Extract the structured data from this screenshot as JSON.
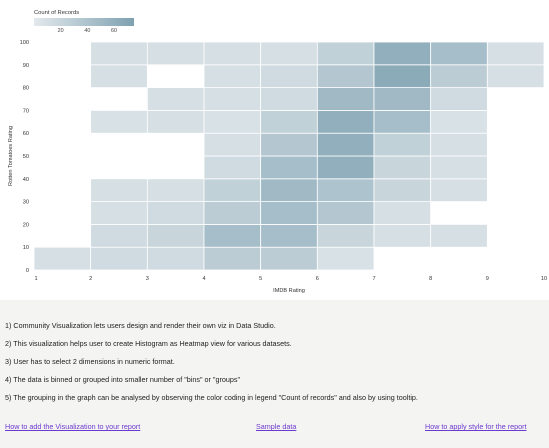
{
  "chart_data": {
    "type": "heatmap",
    "legend": {
      "title": "Count of Records",
      "ticks": [
        20,
        40,
        60
      ],
      "min": 0,
      "max": 75,
      "placement": "top-left"
    },
    "xlabel": "IMDB Rating",
    "ylabel": "Rotten Tomatoes Rating",
    "x_ticks": [
      1,
      2,
      3,
      4,
      5,
      6,
      7,
      8,
      9,
      10
    ],
    "y_ticks": [
      0,
      10,
      20,
      30,
      40,
      50,
      60,
      70,
      80,
      90,
      100
    ],
    "xlim": [
      1,
      10
    ],
    "ylim": [
      0,
      100
    ],
    "x_bin_width": 1,
    "y_bin_width": 10,
    "colors": {
      "low": "#e3e9ec",
      "high": "#7ea1b1"
    },
    "cells": [
      {
        "x": 1,
        "y": 0,
        "count": 10
      },
      {
        "x": 2,
        "y": 0,
        "count": 15
      },
      {
        "x": 3,
        "y": 0,
        "count": 15
      },
      {
        "x": 4,
        "y": 0,
        "count": 30
      },
      {
        "x": 5,
        "y": 0,
        "count": 30
      },
      {
        "x": 6,
        "y": 0,
        "count": 8
      },
      {
        "x": 2,
        "y": 10,
        "count": 15
      },
      {
        "x": 3,
        "y": 10,
        "count": 20
      },
      {
        "x": 4,
        "y": 10,
        "count": 45
      },
      {
        "x": 5,
        "y": 10,
        "count": 45
      },
      {
        "x": 6,
        "y": 10,
        "count": 20
      },
      {
        "x": 7,
        "y": 10,
        "count": 10
      },
      {
        "x": 8,
        "y": 10,
        "count": 10
      },
      {
        "x": 2,
        "y": 20,
        "count": 10
      },
      {
        "x": 3,
        "y": 20,
        "count": 15
      },
      {
        "x": 4,
        "y": 20,
        "count": 30
      },
      {
        "x": 5,
        "y": 20,
        "count": 45
      },
      {
        "x": 6,
        "y": 20,
        "count": 35
      },
      {
        "x": 7,
        "y": 20,
        "count": 10
      },
      {
        "x": 2,
        "y": 30,
        "count": 10
      },
      {
        "x": 3,
        "y": 30,
        "count": 10
      },
      {
        "x": 4,
        "y": 30,
        "count": 25
      },
      {
        "x": 5,
        "y": 30,
        "count": 50
      },
      {
        "x": 6,
        "y": 30,
        "count": 40
      },
      {
        "x": 7,
        "y": 30,
        "count": 20
      },
      {
        "x": 8,
        "y": 30,
        "count": 10
      },
      {
        "x": 4,
        "y": 40,
        "count": 15
      },
      {
        "x": 5,
        "y": 40,
        "count": 45
      },
      {
        "x": 6,
        "y": 40,
        "count": 60
      },
      {
        "x": 7,
        "y": 40,
        "count": 20
      },
      {
        "x": 8,
        "y": 40,
        "count": 10
      },
      {
        "x": 4,
        "y": 50,
        "count": 10
      },
      {
        "x": 5,
        "y": 50,
        "count": 35
      },
      {
        "x": 6,
        "y": 50,
        "count": 60
      },
      {
        "x": 7,
        "y": 50,
        "count": 25
      },
      {
        "x": 8,
        "y": 50,
        "count": 10
      },
      {
        "x": 2,
        "y": 60,
        "count": 8
      },
      {
        "x": 3,
        "y": 60,
        "count": 10
      },
      {
        "x": 4,
        "y": 60,
        "count": 8
      },
      {
        "x": 5,
        "y": 60,
        "count": 25
      },
      {
        "x": 6,
        "y": 60,
        "count": 60
      },
      {
        "x": 7,
        "y": 60,
        "count": 45
      },
      {
        "x": 8,
        "y": 60,
        "count": 8
      },
      {
        "x": 3,
        "y": 70,
        "count": 10
      },
      {
        "x": 4,
        "y": 70,
        "count": 10
      },
      {
        "x": 5,
        "y": 70,
        "count": 15
      },
      {
        "x": 6,
        "y": 70,
        "count": 50
      },
      {
        "x": 7,
        "y": 70,
        "count": 50
      },
      {
        "x": 8,
        "y": 70,
        "count": 15
      },
      {
        "x": 2,
        "y": 80,
        "count": 10
      },
      {
        "x": 4,
        "y": 80,
        "count": 10
      },
      {
        "x": 5,
        "y": 80,
        "count": 15
      },
      {
        "x": 6,
        "y": 80,
        "count": 35
      },
      {
        "x": 7,
        "y": 80,
        "count": 65
      },
      {
        "x": 8,
        "y": 80,
        "count": 30
      },
      {
        "x": 9,
        "y": 80,
        "count": 10
      },
      {
        "x": 2,
        "y": 90,
        "count": 10
      },
      {
        "x": 3,
        "y": 90,
        "count": 10
      },
      {
        "x": 4,
        "y": 90,
        "count": 10
      },
      {
        "x": 5,
        "y": 90,
        "count": 10
      },
      {
        "x": 6,
        "y": 90,
        "count": 25
      },
      {
        "x": 7,
        "y": 90,
        "count": 60
      },
      {
        "x": 8,
        "y": 90,
        "count": 45
      },
      {
        "x": 9,
        "y": 90,
        "count": 10
      }
    ]
  },
  "notes": [
    "1) Community Visualization lets users design and render their own viz in Data Studio.",
    "2) This visualization helps user to create Histogram as Heatmap view for various datasets.",
    "3) User has to select 2 dimensions in numeric format.",
    "4) The data is binned or grouped into smaller number of \"bins\" or \"groups\"",
    "5) The grouping in the graph can be analysed by observing the color coding in legend \"Count of records\" and also by using tooltip."
  ],
  "links": {
    "add_viz": "How to add the Visualization to your report",
    "sample_data": "Sample data",
    "apply_style": "How to apply style for the report"
  }
}
